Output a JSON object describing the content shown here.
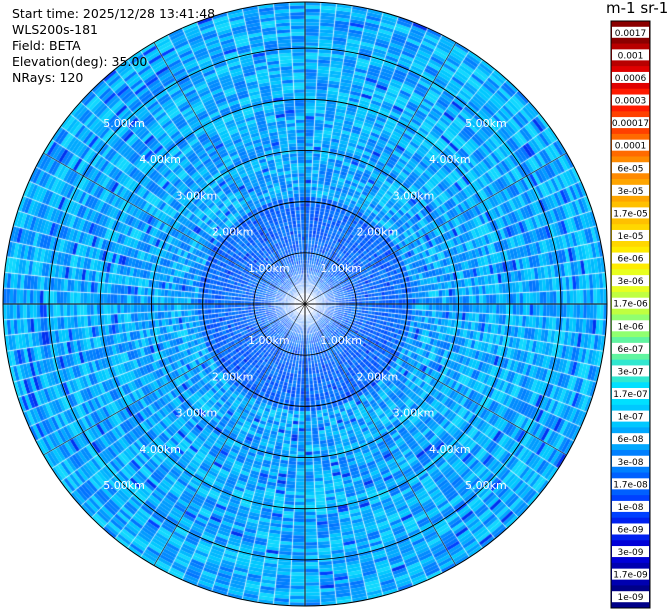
{
  "header": {
    "start_time": "Start time: 2025/12/28 13:41:48",
    "instrument": "WLS200s-181",
    "field": "Field: BETA",
    "elevation": "Elevation(deg): 35.00",
    "nrays": "NRays: 120"
  },
  "chart_data": {
    "type": "heatmap",
    "projection": "polar-ppi",
    "n_rays": 120,
    "elevation_deg": 35.0,
    "range_rings_km": [
      1,
      2,
      3,
      4,
      5
    ],
    "ring_labels": [
      "1.00km",
      "2.00km",
      "3.00km",
      "4.00km",
      "5.00km"
    ],
    "max_range_km": 5.9,
    "colorbar": {
      "title": "m-1 sr-1",
      "tick_labels": [
        "0.0017",
        "0.001",
        "0.0006",
        "0.0003",
        "0.00017",
        "0.0001",
        "6e-05",
        "3e-05",
        "1.7e-05",
        "1e-05",
        "6e-06",
        "3e-06",
        "1.7e-06",
        "1e-06",
        "6e-07",
        "3e-07",
        "1.7e-07",
        "1e-07",
        "6e-08",
        "3e-08",
        "1.7e-08",
        "1e-08",
        "6e-09",
        "3e-09",
        "1.7e-09",
        "1e-09"
      ],
      "colors": [
        "#8b0000",
        "#b80000",
        "#e00000",
        "#ff1a00",
        "#ff4000",
        "#ff6a00",
        "#ff8a00",
        "#ffa500",
        "#ffc000",
        "#ffd700",
        "#ffec00",
        "#e8ff20",
        "#c0ff40",
        "#90ff70",
        "#60f5a0",
        "#30e8d0",
        "#00e0ff",
        "#00c8ff",
        "#00a8ff",
        "#0080ff",
        "#0060ff",
        "#0040ff",
        "#0020f0",
        "#0000d8",
        "#0000b0",
        "#000088"
      ]
    },
    "dominant_values": [
      "3e-08",
      "1.7e-08",
      "1e-08"
    ]
  }
}
